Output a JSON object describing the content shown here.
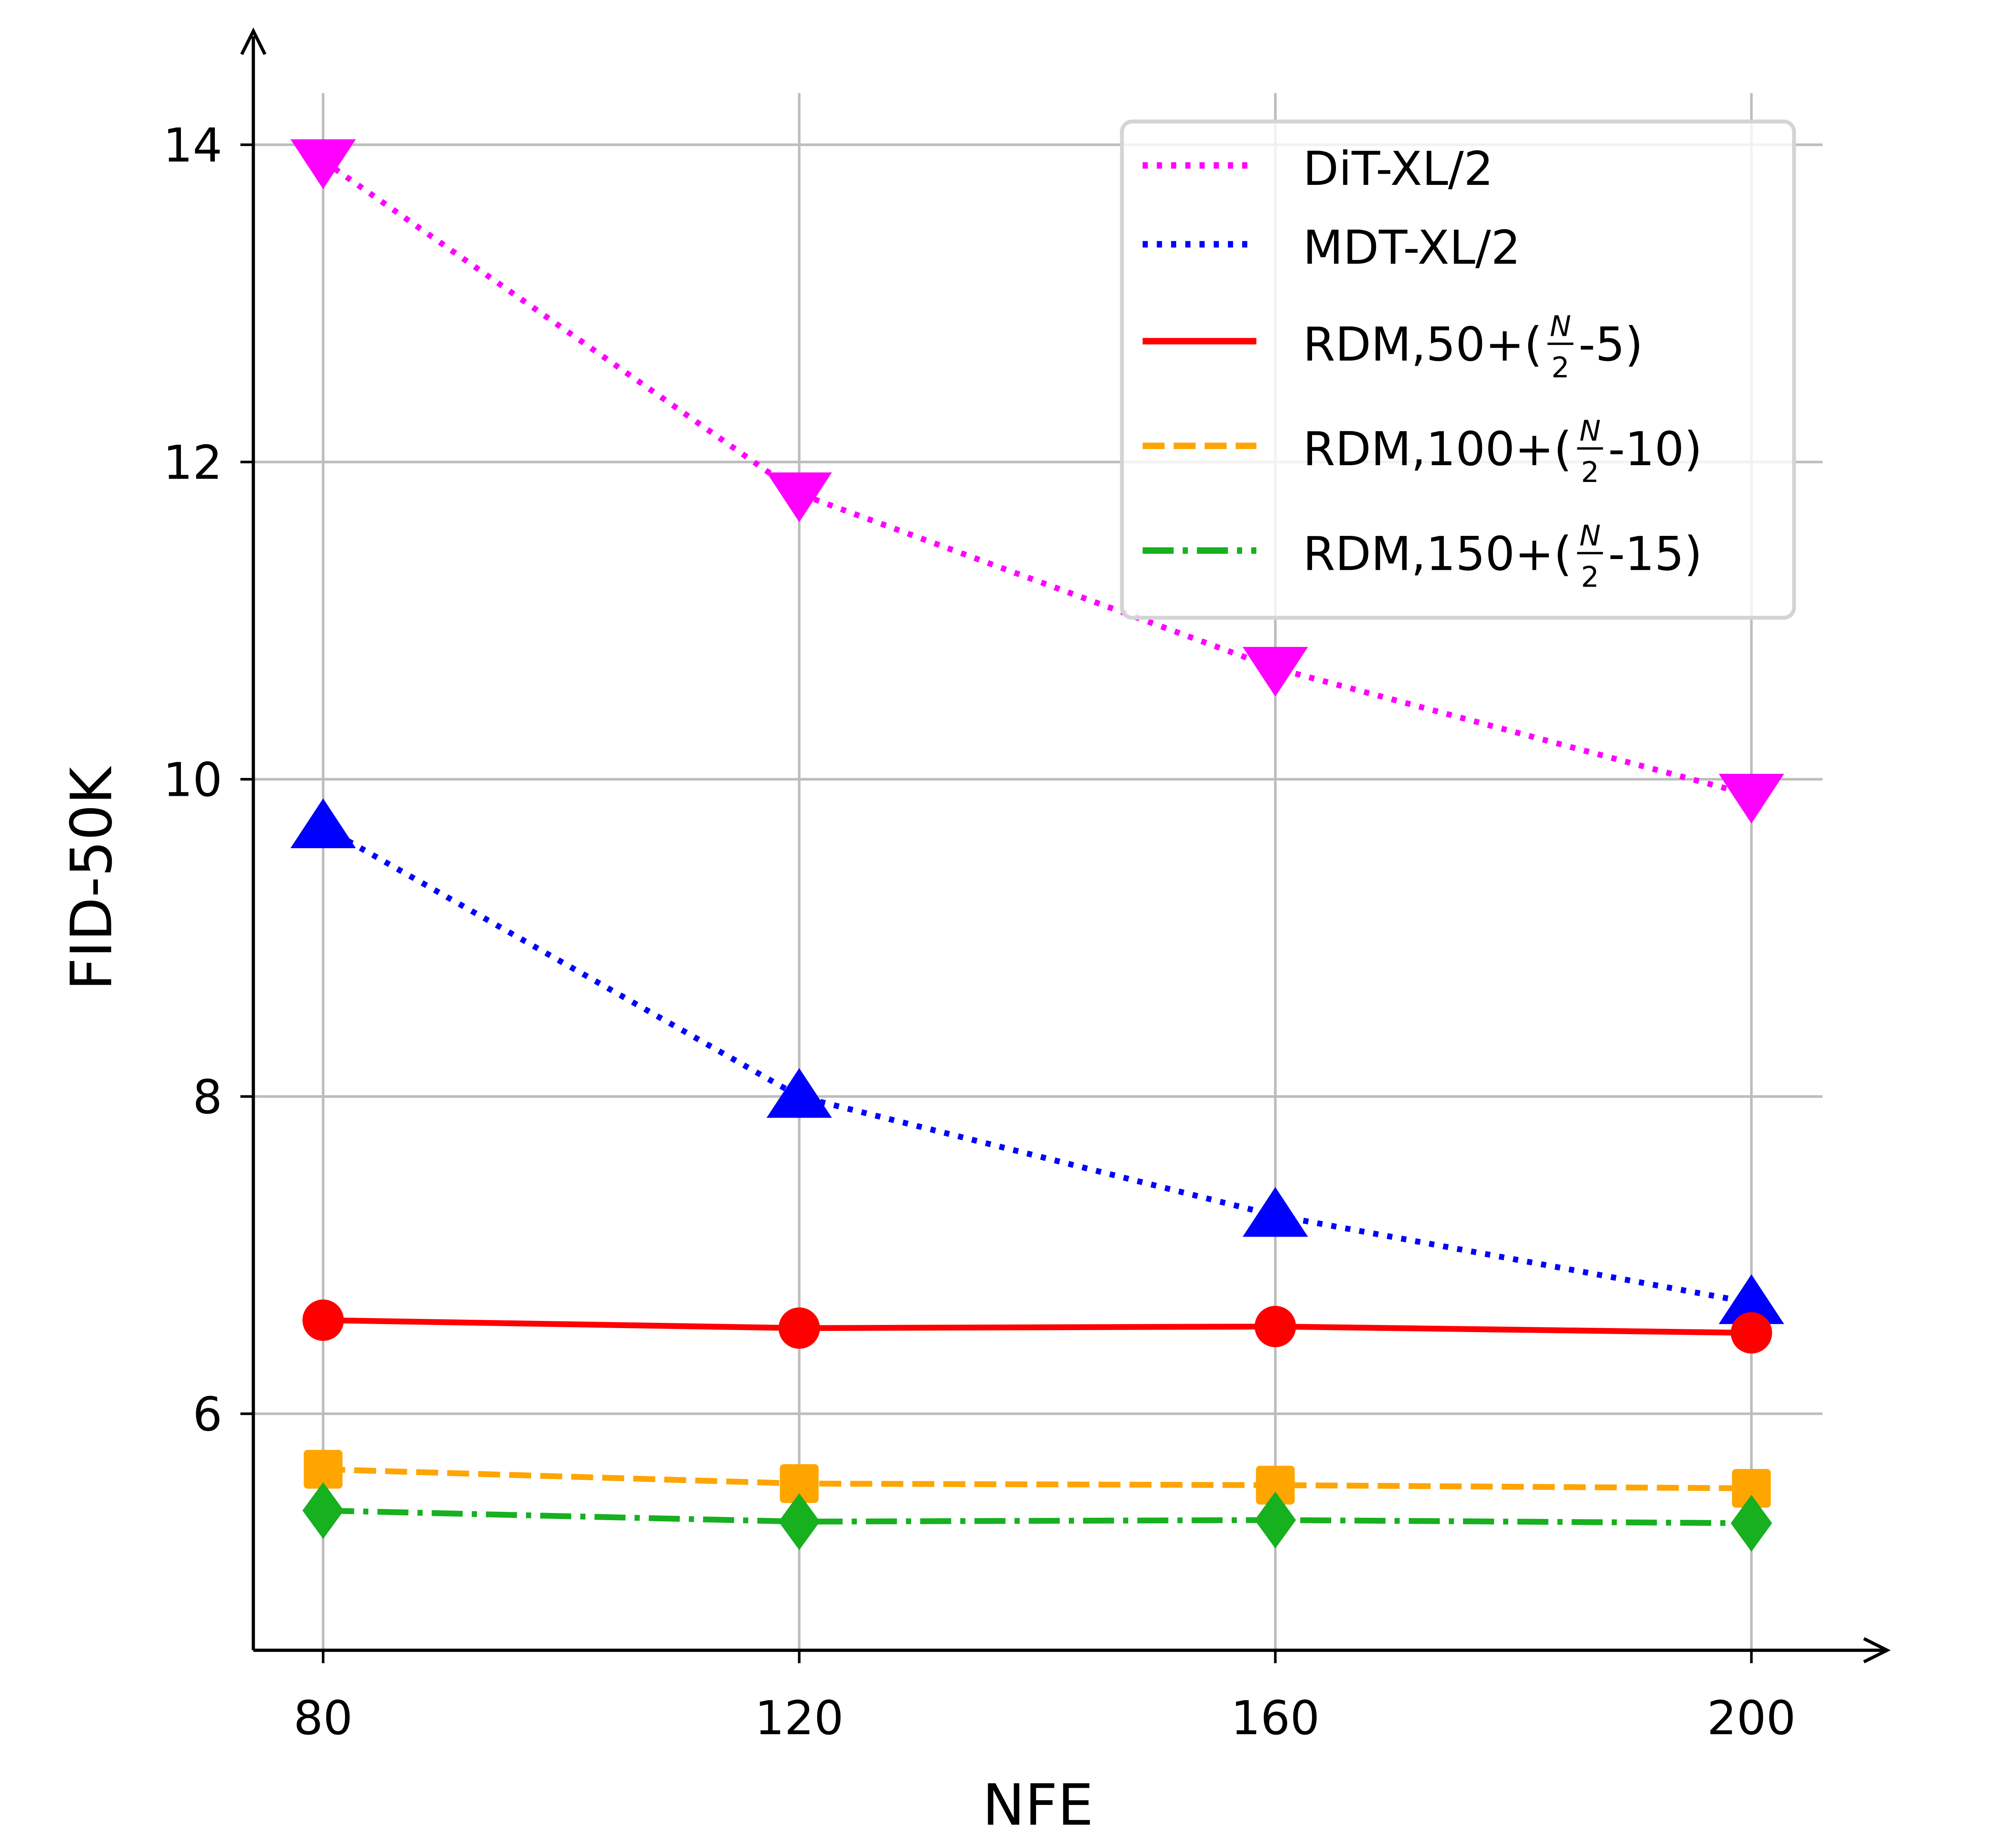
{
  "chart_data": {
    "type": "line",
    "title": "",
    "xlabel": "NFE",
    "ylabel": "FID-50K",
    "x": [
      80,
      120,
      160,
      200
    ],
    "xticks": [
      "80",
      "120",
      "160",
      "200"
    ],
    "yticks": [
      "6",
      "8",
      "10",
      "12",
      "14"
    ],
    "xlim": [
      74,
      211
    ],
    "ylim": [
      4.5,
      14.7
    ],
    "grid": true,
    "legend_position": "top-right",
    "series": [
      {
        "name": "DiT-XL/2",
        "color": "#ff00ff",
        "linestyle": "dotted",
        "marker": "triangle-down",
        "values": [
          13.9,
          11.8,
          10.7,
          9.9
        ]
      },
      {
        "name": "MDT-XL/2",
        "color": "#0000ff",
        "linestyle": "dotted",
        "marker": "triangle-up",
        "values": [
          9.7,
          8.0,
          7.25,
          6.7
        ]
      },
      {
        "name": "RDM,50+(N/2-5)",
        "color": "#ff0000",
        "linestyle": "solid",
        "marker": "circle",
        "values": [
          6.59,
          6.54,
          6.55,
          6.51
        ]
      },
      {
        "name": "RDM,100+(N/2-10)",
        "color": "#ffa500",
        "linestyle": "dashed",
        "marker": "square",
        "values": [
          5.65,
          5.56,
          5.55,
          5.53
        ]
      },
      {
        "name": "RDM,150+(N/2-15)",
        "color": "#17b01f",
        "linestyle": "dashdot",
        "marker": "diamond",
        "values": [
          5.39,
          5.32,
          5.33,
          5.31
        ]
      }
    ]
  }
}
